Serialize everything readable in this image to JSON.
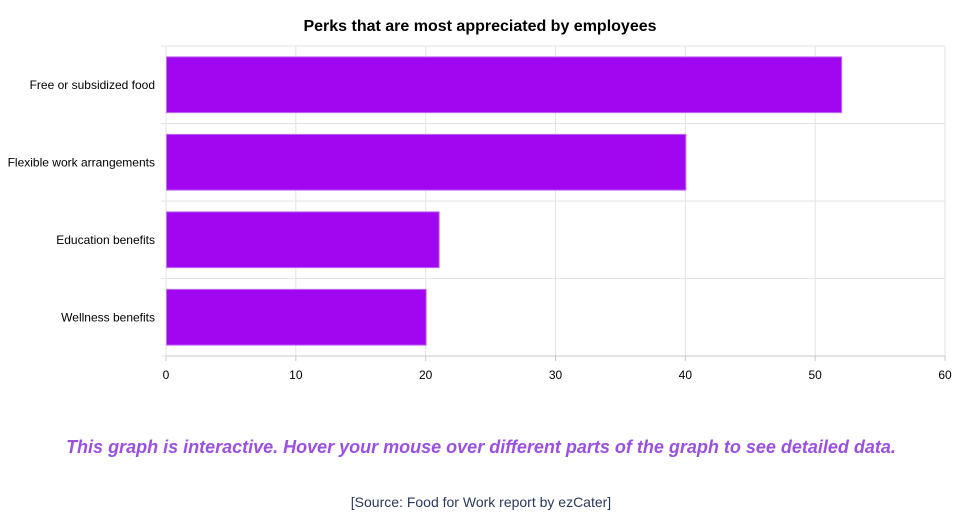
{
  "chart_data": {
    "type": "bar",
    "orientation": "horizontal",
    "title": "Perks that are most appreciated by employees",
    "categories": [
      "Free or subsidized food",
      "Flexible work arrangements",
      "Education benefits",
      "Wellness benefits"
    ],
    "values": [
      52,
      40,
      21,
      20
    ],
    "xlim": [
      0,
      60
    ],
    "xticks": [
      "0",
      "10",
      "20",
      "30",
      "40",
      "50",
      "60"
    ],
    "grid": true,
    "bar_color": "#a106f0",
    "bar_border_color": "#c070f5"
  },
  "notes": {
    "interactive": "This graph is interactive. Hover your mouse over different parts of the graph to see detailed data.",
    "source": "[Source: Food for Work report by ezCater]"
  }
}
